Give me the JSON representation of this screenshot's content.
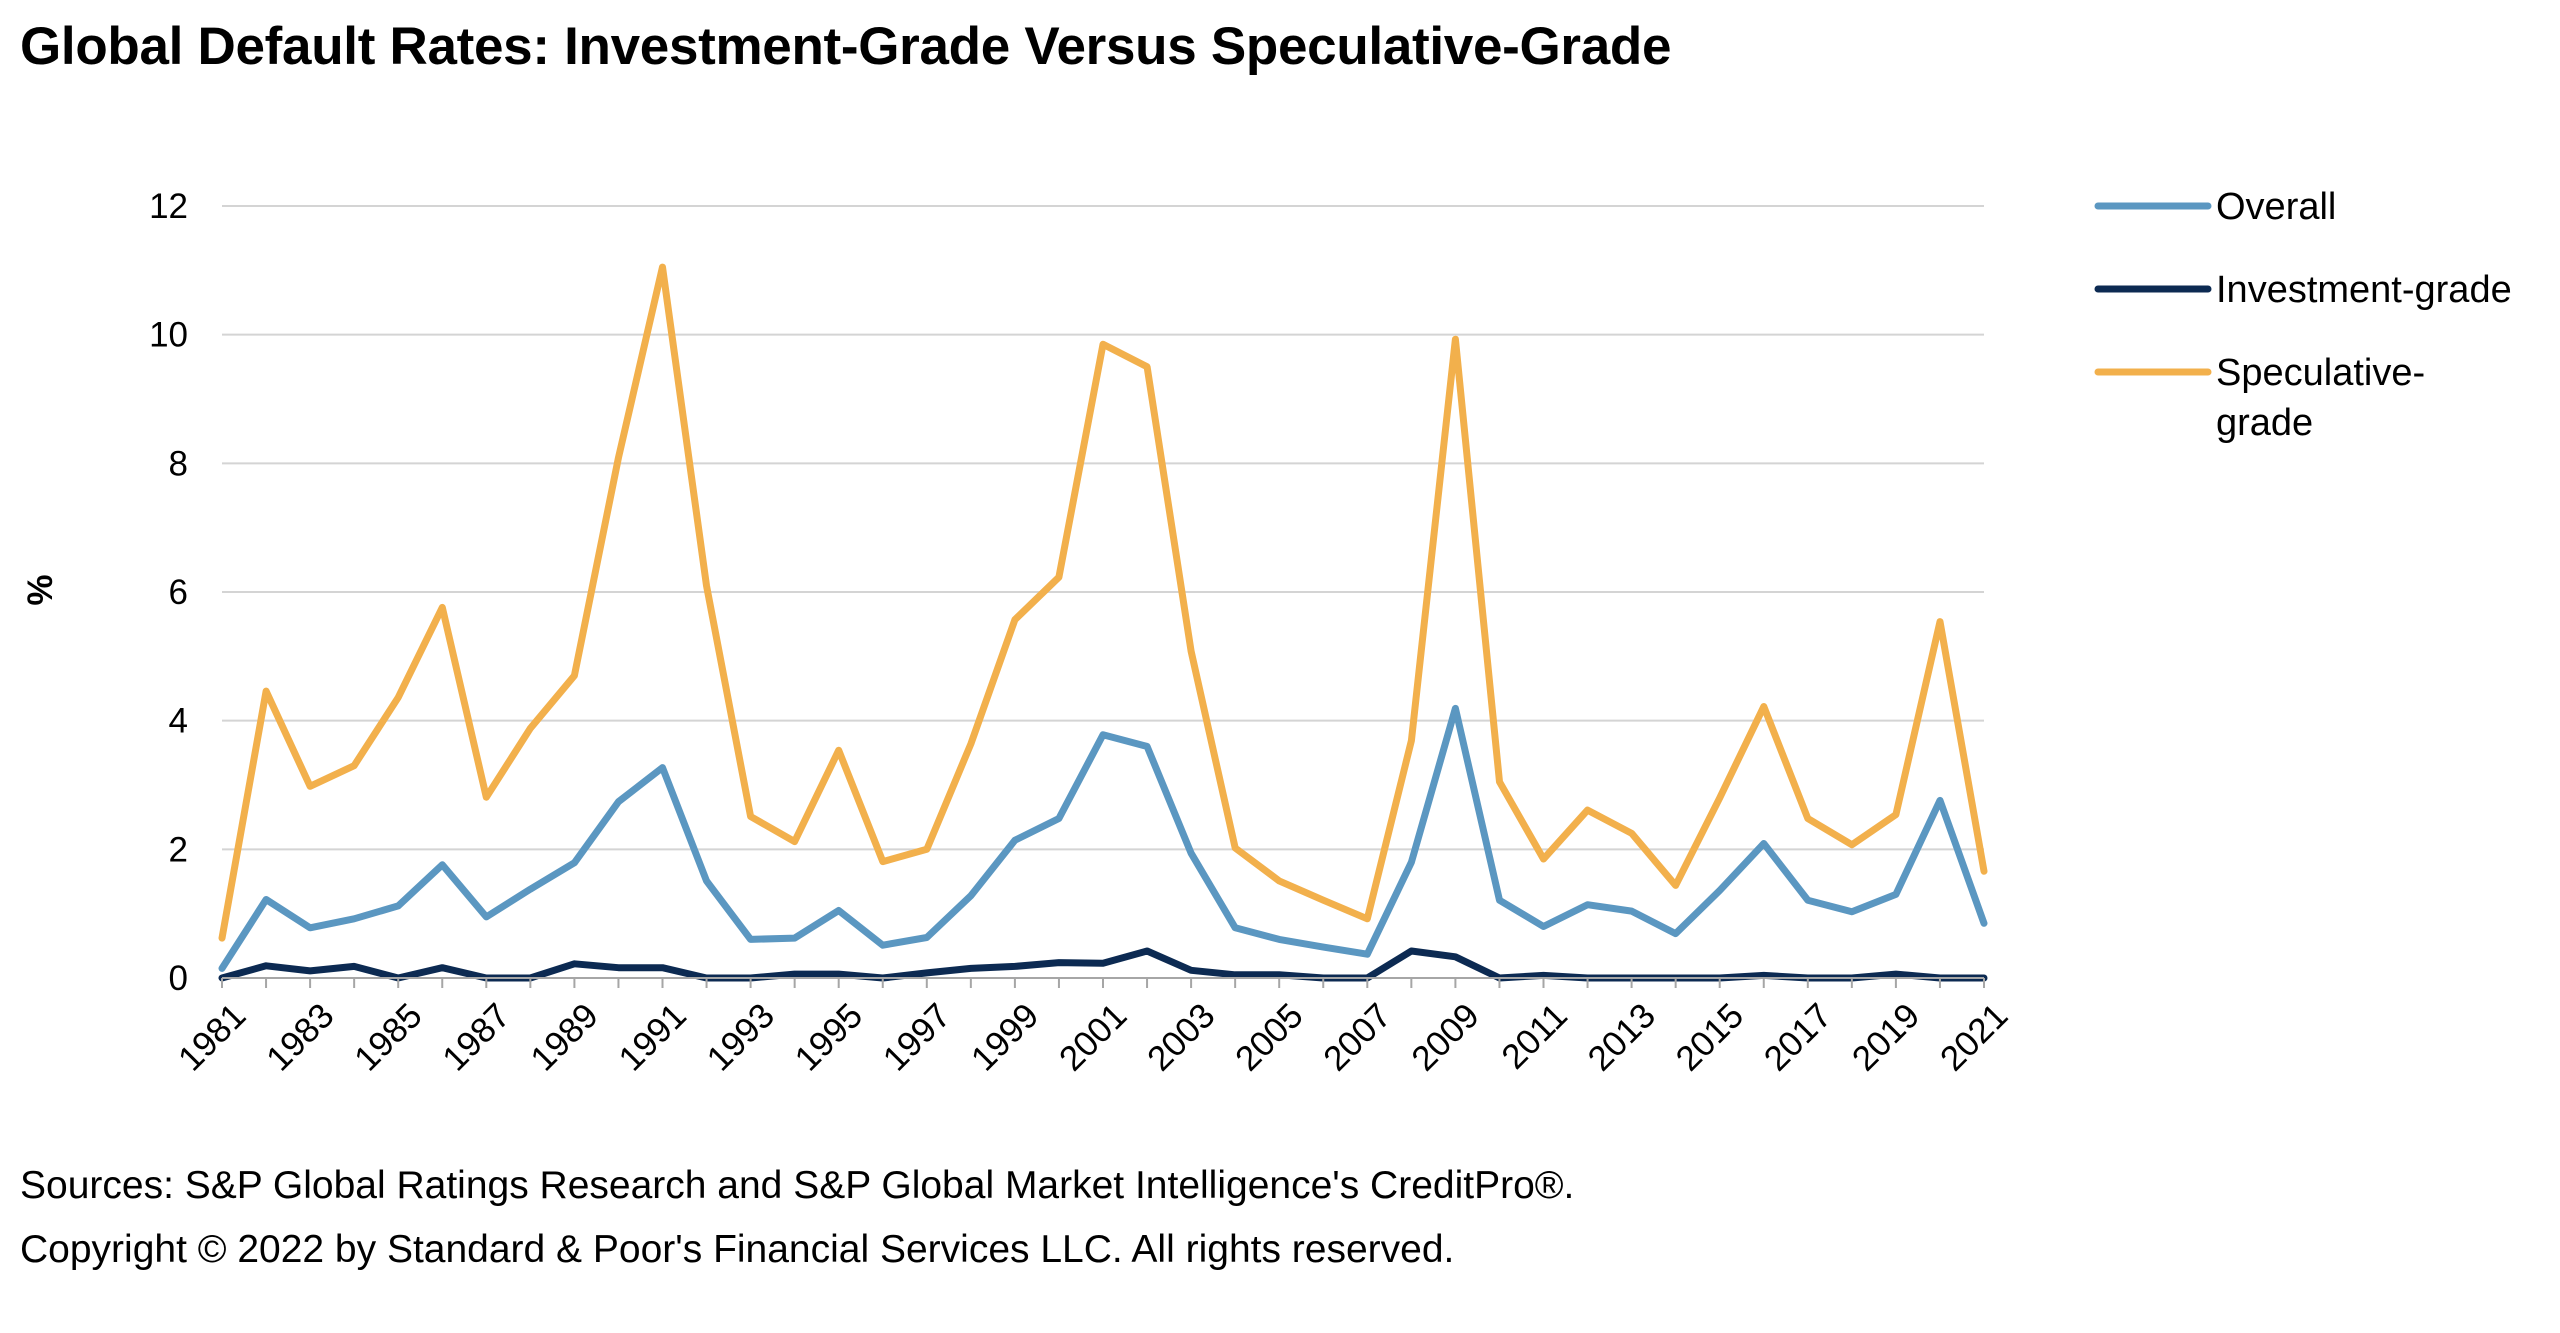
{
  "title": "Global Default Rates: Investment-Grade Versus Speculative-Grade",
  "footer": {
    "sources": "Sources: S&P Global Ratings Research and S&P Global Market Intelligence's CreditPro®.",
    "copyright": "Copyright © 2022 by Standard & Poor's Financial Services LLC. All rights reserved."
  },
  "chart_data": {
    "type": "line",
    "title": "",
    "xlabel": "",
    "ylabel": "%",
    "ylim": [
      0,
      12
    ],
    "yticks": [
      0,
      2,
      4,
      6,
      8,
      10,
      12
    ],
    "grid": "horizontal",
    "legend_position": "right",
    "x": [
      1981,
      1982,
      1983,
      1984,
      1985,
      1986,
      1987,
      1988,
      1989,
      1990,
      1991,
      1992,
      1993,
      1994,
      1995,
      1996,
      1997,
      1998,
      1999,
      2000,
      2001,
      2002,
      2003,
      2004,
      2005,
      2006,
      2007,
      2008,
      2009,
      2010,
      2011,
      2012,
      2013,
      2014,
      2015,
      2016,
      2017,
      2018,
      2019,
      2020,
      2021
    ],
    "xticks": [
      "1981",
      "1983",
      "1985",
      "1987",
      "1989",
      "1991",
      "1993",
      "1995",
      "1997",
      "1999",
      "2001",
      "2003",
      "2005",
      "2007",
      "2009",
      "2011",
      "2013",
      "2015",
      "2017",
      "2019",
      "2021"
    ],
    "series": [
      {
        "name": "Overall",
        "color": "#5b97c1",
        "values": [
          0.15,
          1.22,
          0.78,
          0.92,
          1.12,
          1.76,
          0.95,
          1.38,
          1.79,
          2.74,
          3.27,
          1.51,
          0.6,
          0.62,
          1.05,
          0.51,
          0.63,
          1.28,
          2.14,
          2.48,
          3.78,
          3.6,
          1.94,
          0.78,
          0.6,
          0.48,
          0.37,
          1.8,
          4.19,
          1.21,
          0.8,
          1.14,
          1.04,
          0.69,
          1.36,
          2.09,
          1.21,
          1.03,
          1.3,
          2.76,
          0.85
        ]
      },
      {
        "name": "Investment-grade",
        "color": "#0c2a52",
        "values": [
          0.0,
          0.19,
          0.11,
          0.18,
          0.0,
          0.16,
          0.0,
          0.0,
          0.22,
          0.16,
          0.16,
          0.0,
          0.0,
          0.06,
          0.06,
          0.0,
          0.08,
          0.15,
          0.18,
          0.24,
          0.23,
          0.42,
          0.12,
          0.05,
          0.05,
          0.0,
          0.0,
          0.42,
          0.33,
          0.0,
          0.04,
          0.0,
          0.0,
          0.0,
          0.0,
          0.04,
          0.0,
          0.0,
          0.06,
          0.0,
          0.0
        ]
      },
      {
        "name": "Speculative-grade",
        "color": "#f2b04c",
        "values": [
          0.62,
          4.46,
          2.98,
          3.3,
          4.36,
          5.76,
          2.81,
          3.88,
          4.7,
          8.09,
          11.05,
          6.1,
          2.51,
          2.12,
          3.54,
          1.81,
          2.0,
          3.64,
          5.57,
          6.23,
          9.85,
          9.5,
          5.08,
          2.02,
          1.51,
          1.21,
          0.92,
          3.69,
          9.93,
          3.05,
          1.85,
          2.61,
          2.25,
          1.44,
          2.8,
          4.22,
          2.48,
          2.07,
          2.54,
          5.54,
          1.66
        ]
      }
    ]
  }
}
